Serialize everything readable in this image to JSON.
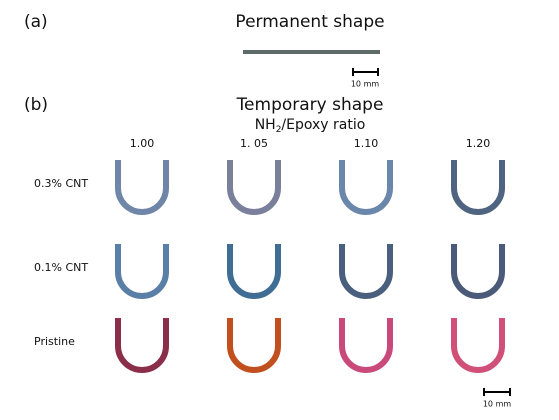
{
  "panel_a": {
    "label": "(a)",
    "title": "Permanent shape",
    "scale_bar": "10 mm"
  },
  "panel_b": {
    "label": "(b)",
    "title": "Temporary shape",
    "ratio_label": {
      "prefix": "NH",
      "subscript": "2",
      "suffix": "/Epoxy ratio"
    },
    "columns": [
      "1.00",
      "1. 05",
      "1.10",
      "1.20"
    ],
    "rows": [
      "0.3% CNT",
      "0.1% CNT",
      "Pristine"
    ],
    "scale_bar": "10 mm"
  }
}
